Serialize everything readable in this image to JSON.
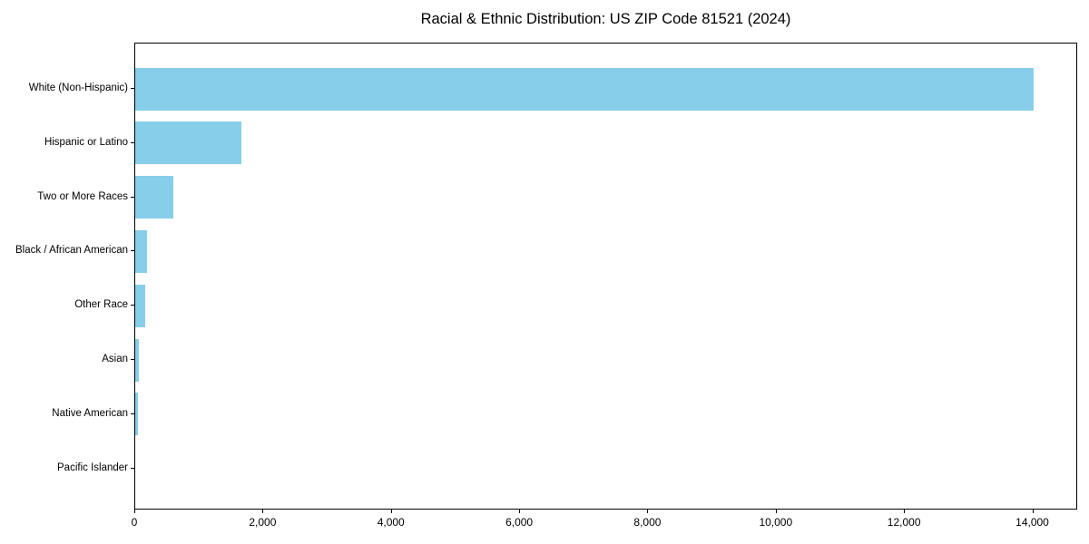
{
  "chart_data": {
    "type": "bar",
    "orientation": "horizontal",
    "title": "Racial & Ethnic Distribution: US ZIP Code 81521 (2024)",
    "categories": [
      "White (Non-Hispanic)",
      "Hispanic or Latino",
      "Two or More Races",
      "Black / African American",
      "Other Race",
      "Asian",
      "Native American",
      "Pacific Islander"
    ],
    "values": [
      14000,
      1650,
      590,
      180,
      150,
      55,
      40,
      0
    ],
    "xlabel": "",
    "ylabel": "",
    "xlim": [
      0,
      14700
    ],
    "x_ticks": [
      0,
      2000,
      4000,
      6000,
      8000,
      10000,
      12000,
      14000
    ],
    "x_tick_labels": [
      "0",
      "2,000",
      "4,000",
      "6,000",
      "8,000",
      "10,000",
      "12,000",
      "14,000"
    ],
    "bar_color": "#87CEEB",
    "text_color": "#000000",
    "grid": false,
    "legend_position": "none"
  }
}
